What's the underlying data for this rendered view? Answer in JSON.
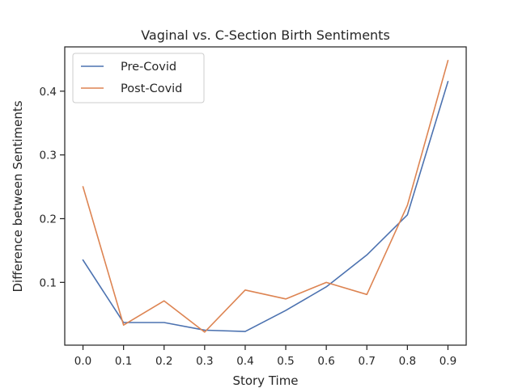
{
  "chart_data": {
    "type": "line",
    "title": "Vaginal vs. C-Section Birth Sentiments",
    "xlabel": "Story Time",
    "ylabel": "Difference between Sentiments",
    "x": [
      0.0,
      0.1,
      0.2,
      0.3,
      0.4,
      0.5,
      0.6,
      0.7,
      0.8,
      0.9
    ],
    "x_tick_labels": [
      "0.0",
      "0.1",
      "0.2",
      "0.3",
      "0.4",
      "0.5",
      "0.6",
      "0.7",
      "0.8",
      "0.9"
    ],
    "y_tick_values": [
      0.1,
      0.2,
      0.3,
      0.4
    ],
    "y_tick_labels": [
      "0.1",
      "0.2",
      "0.3",
      "0.4"
    ],
    "xlim": [
      -0.045,
      0.945
    ],
    "ylim": [
      0.0015,
      0.4695
    ],
    "grid": false,
    "legend_position": "upper-left",
    "series": [
      {
        "name": "Pre-Covid",
        "color": "#4c72b0",
        "values": [
          0.135,
          0.037,
          0.037,
          0.025,
          0.023,
          0.056,
          0.093,
          0.143,
          0.206,
          0.415
        ]
      },
      {
        "name": "Post-Covid",
        "color": "#dd8452",
        "values": [
          0.25,
          0.033,
          0.071,
          0.022,
          0.088,
          0.074,
          0.1,
          0.081,
          0.221,
          0.448
        ]
      }
    ]
  }
}
